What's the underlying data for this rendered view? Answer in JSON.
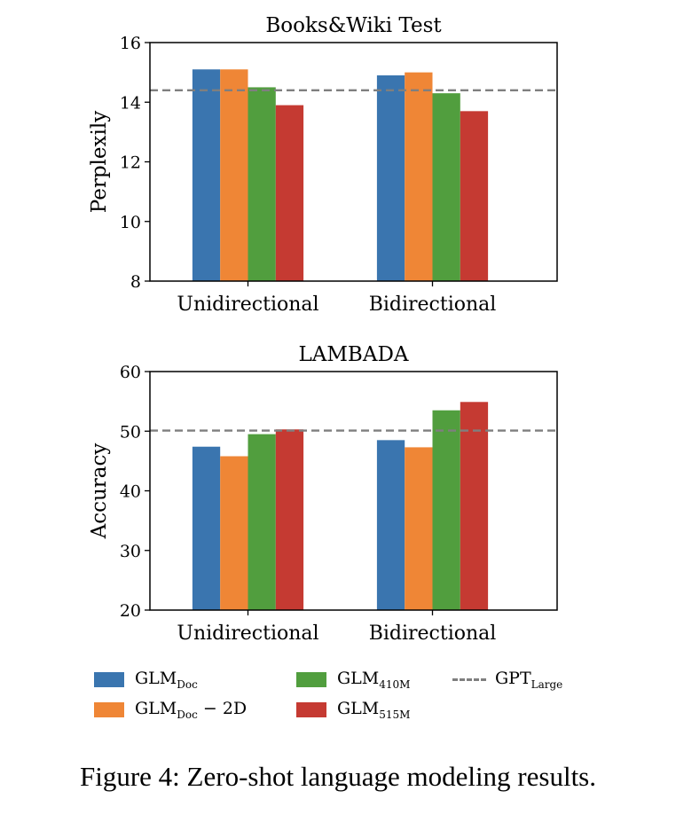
{
  "chart_data": [
    {
      "type": "bar",
      "title": "Books&Wiki Test",
      "ylabel": "Perplexily",
      "xlabel": "",
      "categories": [
        "Unidirectional",
        "Bidirectional"
      ],
      "ylim": [
        8,
        16
      ],
      "yticks": [
        8,
        10,
        12,
        14,
        16
      ],
      "series": [
        {
          "name": "GLM_Doc",
          "values": [
            15.1,
            14.9
          ]
        },
        {
          "name": "GLM_Doc - 2D",
          "values": [
            15.1,
            15.0
          ]
        },
        {
          "name": "GLM_410M",
          "values": [
            14.5,
            14.3
          ]
        },
        {
          "name": "GLM_515M",
          "values": [
            13.9,
            13.7
          ]
        }
      ],
      "reference_line": {
        "name": "GPT_Large",
        "value": 14.4
      }
    },
    {
      "type": "bar",
      "title": "LAMBADA",
      "ylabel": "Accuracy",
      "xlabel": "",
      "categories": [
        "Unidirectional",
        "Bidirectional"
      ],
      "ylim": [
        20,
        60
      ],
      "yticks": [
        20,
        30,
        40,
        50,
        60
      ],
      "series": [
        {
          "name": "GLM_Doc",
          "values": [
            47.4,
            48.5
          ]
        },
        {
          "name": "GLM_Doc - 2D",
          "values": [
            45.8,
            47.3
          ]
        },
        {
          "name": "GLM_410M",
          "values": [
            49.5,
            53.5
          ]
        },
        {
          "name": "GLM_515M",
          "values": [
            50.3,
            54.9
          ]
        }
      ],
      "reference_line": {
        "name": "GPT_Large",
        "value": 50.1
      }
    }
  ],
  "colors": [
    "#3a75af",
    "#ef8636",
    "#519e3e",
    "#c53a32"
  ],
  "reference_color": "#7f7f7f",
  "legend": {
    "items": [
      {
        "base": "GLM",
        "sub": "Doc",
        "suffix": ""
      },
      {
        "base": "GLM",
        "sub": "Doc",
        "suffix": " − 2D"
      },
      {
        "base": "GLM",
        "sub": "410M",
        "suffix": ""
      },
      {
        "base": "GLM",
        "sub": "515M",
        "suffix": ""
      },
      {
        "base": "GPT",
        "sub": "Large",
        "suffix": ""
      }
    ]
  },
  "caption": "Figure 4: Zero-shot language modeling results."
}
